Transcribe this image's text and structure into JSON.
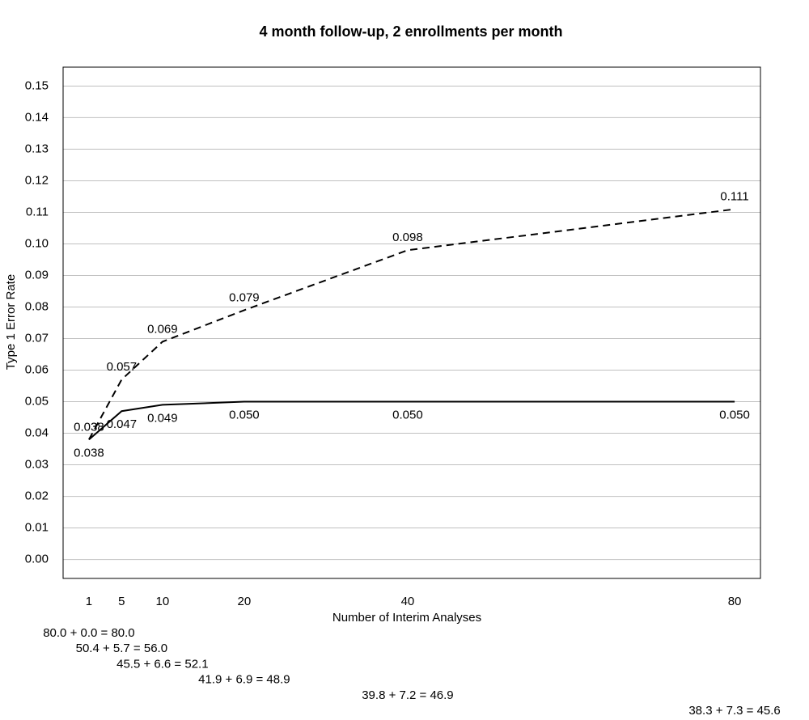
{
  "chart_data": {
    "type": "line",
    "title": "4 month follow-up, 2 enrollments per month",
    "x_label": "Number of Interim Analyses",
    "y_label": "Type 1 Error Rate",
    "x": [
      1,
      5,
      10,
      20,
      40,
      80
    ],
    "series": [
      {
        "color": "#000000",
        "dash": "dashed",
        "label_position": "above",
        "values": [
          0.038,
          0.057,
          0.069,
          0.079,
          0.098,
          0.111
        ],
        "value_labels": [
          "0.038",
          "0.057",
          "0.069",
          "0.079",
          "0.098",
          "0.111"
        ]
      },
      {
        "color": "#000000",
        "dash": "solid",
        "label_position": "below",
        "values": [
          0.038,
          0.047,
          0.049,
          0.05,
          0.05,
          0.05
        ],
        "value_labels": [
          "0.038",
          "0.047",
          "0.049",
          "0.050",
          "0.050",
          "0.050"
        ]
      }
    ],
    "xlim": [
      -2.16,
      83.16
    ],
    "ylim": [
      -0.006,
      0.156
    ],
    "xticks": [
      1,
      5,
      10,
      20,
      40,
      80
    ],
    "yticks": [
      {
        "value": 0,
        "label": "0.00"
      },
      0.01,
      0.02,
      0.03,
      0.04,
      0.05,
      0.06,
      0.07,
      0.08,
      0.09,
      {
        "value": 0.1,
        "label": "0.10"
      },
      0.11,
      0.12,
      0.13,
      0.14,
      0.15
    ],
    "grid": true,
    "annotations": [
      "80.0 + 0.0 = 80.0",
      "50.4 + 5.7 = 56.0",
      "45.5 + 6.6 = 52.1",
      "41.9 + 6.9 = 48.9",
      "39.8 + 7.2 = 46.9",
      "38.3 + 7.3 = 45.6"
    ]
  }
}
